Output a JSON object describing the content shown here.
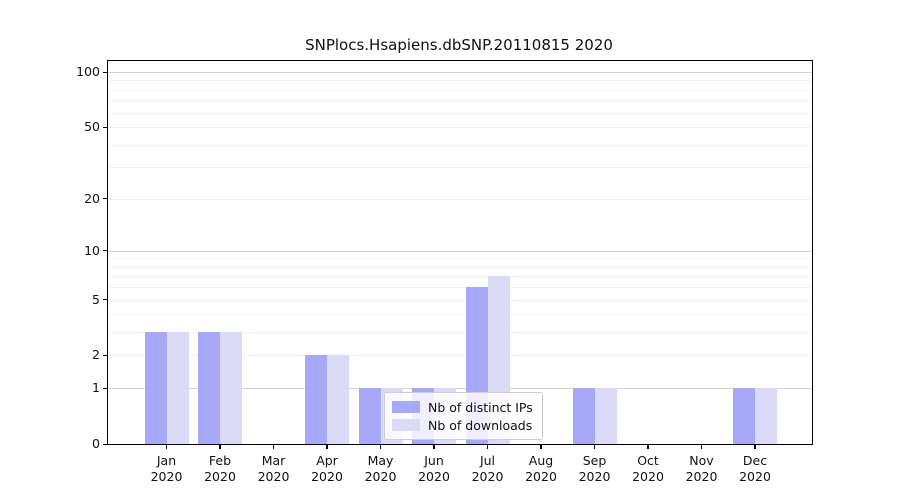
{
  "title": "SNPlocs.Hsapiens.dbSNP.20110815 2020",
  "chart_data": {
    "type": "bar",
    "title": "SNPlocs.Hsapiens.dbSNP.20110815 2020",
    "scale": "log1p",
    "categories": [
      "Jan",
      "Feb",
      "Mar",
      "Apr",
      "May",
      "Jun",
      "Jul",
      "Aug",
      "Sep",
      "Oct",
      "Nov",
      "Dec"
    ],
    "category_year": "2020",
    "series": [
      {
        "name": "Nb of distinct IPs",
        "color": "#a8a8f8",
        "values": [
          3,
          3,
          0,
          2,
          1,
          1,
          6,
          0,
          1,
          0,
          0,
          1
        ]
      },
      {
        "name": "Nb of downloads",
        "color": "#dbdbf8",
        "values": [
          3,
          3,
          0,
          2,
          1,
          1,
          7,
          0,
          1,
          0,
          0,
          1
        ]
      }
    ],
    "ylim": [
      0,
      100
    ],
    "yticks_labeled": [
      0,
      1,
      2,
      5,
      10,
      20,
      50,
      100
    ],
    "ygrid_major": [
      1,
      10,
      100
    ],
    "ygrid_minor": [
      2,
      3,
      4,
      5,
      6,
      7,
      8,
      9,
      20,
      30,
      40,
      50,
      60,
      70,
      80,
      90
    ],
    "grid": "horizontal",
    "legend_position": "inside-bottom-center"
  },
  "colors": {
    "major_grid": "#d4d4d4",
    "minor_grid": "#f2f2f2",
    "axis": "#000000",
    "background": "#ffffff"
  }
}
